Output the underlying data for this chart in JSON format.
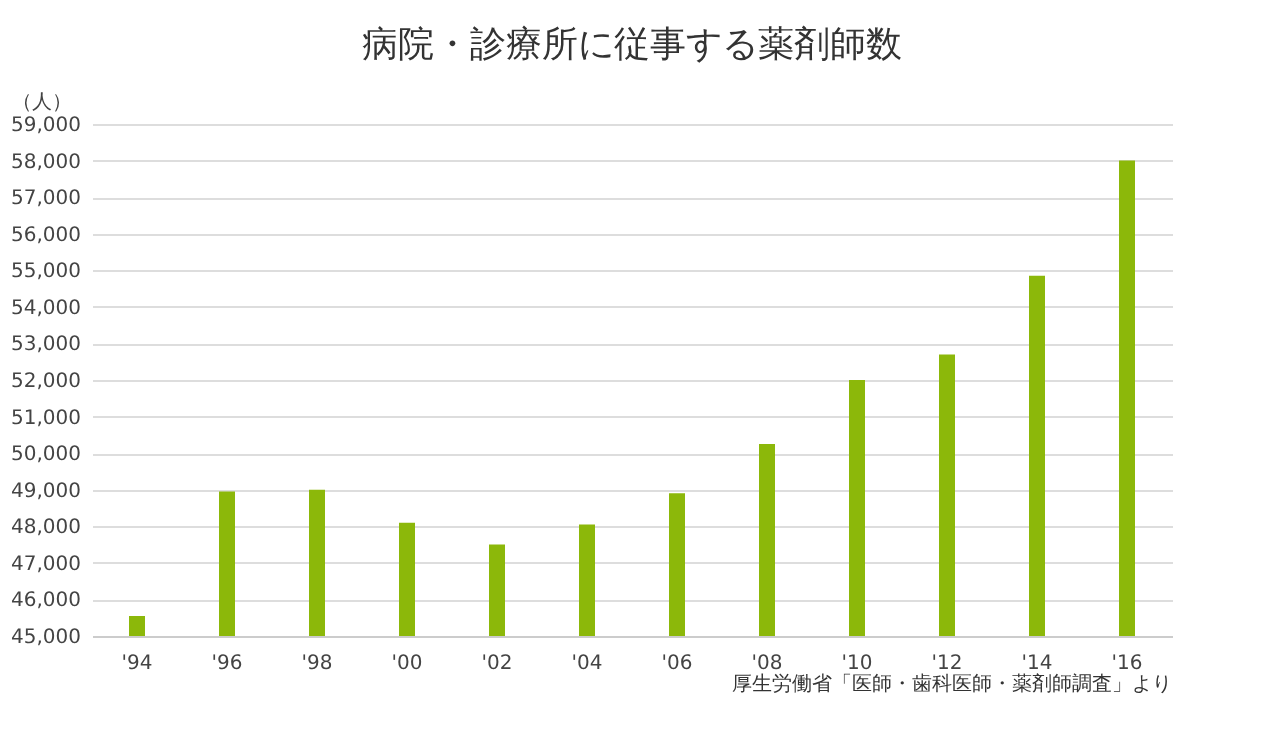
{
  "chart_data": {
    "type": "bar",
    "title": "病院・診療所に従事する薬剤師数",
    "ylabel": "（人）",
    "categories": [
      "'94",
      "'96",
      "'98",
      "'00",
      "'02",
      "'04",
      "'06",
      "'08",
      "'10",
      "'12",
      "'14",
      "'16"
    ],
    "values": [
      45550,
      48950,
      49000,
      48100,
      47500,
      48050,
      48900,
      50250,
      52000,
      52700,
      54850,
      58000
    ],
    "color": "#8cb80a",
    "ylim": [
      45000,
      59000
    ],
    "yticks": [
      {
        "value": 45000,
        "label": "45,000"
      },
      {
        "value": 46000,
        "label": "46,000"
      },
      {
        "value": 47000,
        "label": "47,000"
      },
      {
        "value": 48000,
        "label": "48,000"
      },
      {
        "value": 49000,
        "label": "49,000"
      },
      {
        "value": 50000,
        "label": "50,000"
      },
      {
        "value": 51000,
        "label": "51,000"
      },
      {
        "value": 52000,
        "label": "52,000"
      },
      {
        "value": 53000,
        "label": "53,000"
      },
      {
        "value": 54000,
        "label": "54,000"
      },
      {
        "value": 55000,
        "label": "55,000"
      },
      {
        "value": 56000,
        "label": "56,000"
      },
      {
        "value": 57000,
        "label": "57,000"
      },
      {
        "value": 58000,
        "label": "58,000"
      },
      {
        "value": 59000,
        "label": "59,000"
      }
    ],
    "grid": "y",
    "annotations": [
      "厚生労働省「医師・歯科医師・薬剤師調査」より"
    ]
  }
}
